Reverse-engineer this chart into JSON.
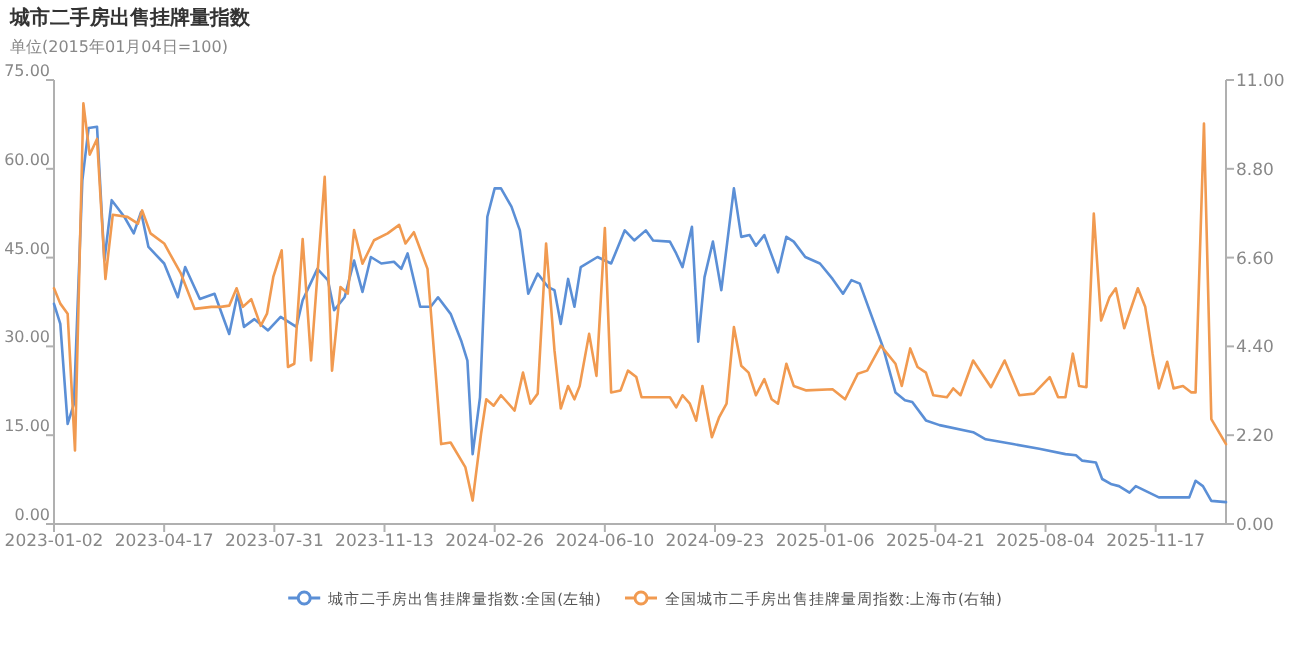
{
  "chart_data": {
    "type": "line",
    "title": "城市二手房出售挂牌量指数",
    "subtitle": "单位(2015年01月04日=100)",
    "xlim": [
      "2023-01-02",
      "2026-01-23"
    ],
    "xticks": [
      "2023-01-02",
      "2023-04-17",
      "2023-07-31",
      "2023-11-13",
      "2024-02-26",
      "2024-06-10",
      "2024-09-23",
      "2025-01-06",
      "2025-04-21",
      "2025-08-04",
      "2025-11-17"
    ],
    "ylim": [
      0,
      75
    ],
    "yticks": [
      {
        "value": 0,
        "label": "0.00"
      },
      {
        "value": 15,
        "label": "15.00"
      },
      {
        "value": 30,
        "label": "30.00"
      },
      {
        "value": 45,
        "label": "45.00"
      },
      {
        "value": 60,
        "label": "60.00"
      },
      {
        "value": 75,
        "label": "75.00"
      }
    ],
    "y2lim": [
      0,
      11
    ],
    "y2ticks": [
      {
        "value": 0,
        "label": "0.00"
      },
      {
        "value": 2.2,
        "label": "2.20"
      },
      {
        "value": 4.4,
        "label": "4.40"
      },
      {
        "value": 6.6,
        "label": "6.60"
      },
      {
        "value": 8.8,
        "label": "8.80"
      },
      {
        "value": 11,
        "label": "11.00"
      }
    ],
    "legend": "bottom",
    "grid": false,
    "series": [
      {
        "name": "城市二手房出售挂牌量指数:全国(左轴)",
        "color": "#5b8fd6",
        "x": [
          "2023-01-02",
          "2023-01-08",
          "2023-01-15",
          "2023-01-21",
          "2023-01-29",
          "2023-02-04",
          "2023-02-12",
          "2023-02-19",
          "2023-02-26",
          "2023-03-10",
          "2023-03-19",
          "2023-03-26",
          "2023-04-02",
          "2023-04-17",
          "2023-04-30",
          "2023-05-07",
          "2023-05-21",
          "2023-06-04",
          "2023-06-18",
          "2023-06-26",
          "2023-07-02",
          "2023-07-12",
          "2023-07-25",
          "2023-08-06",
          "2023-08-21",
          "2023-08-27",
          "2023-09-10",
          "2023-09-20",
          "2023-09-26",
          "2023-10-06",
          "2023-10-15",
          "2023-10-23",
          "2023-10-31",
          "2023-11-10",
          "2023-11-22",
          "2023-11-29",
          "2023-12-05",
          "2023-12-17",
          "2023-12-27",
          "2024-01-03",
          "2024-01-15",
          "2024-01-25",
          "2024-01-31",
          "2024-02-05",
          "2024-02-12",
          "2024-02-19",
          "2024-02-26",
          "2024-03-03",
          "2024-03-13",
          "2024-03-21",
          "2024-03-29",
          "2024-04-07",
          "2024-04-17",
          "2024-04-23",
          "2024-04-29",
          "2024-05-06",
          "2024-05-12",
          "2024-05-18",
          "2024-06-03",
          "2024-06-16",
          "2024-06-29",
          "2024-07-08",
          "2024-07-19",
          "2024-07-26",
          "2024-08-11",
          "2024-08-17",
          "2024-08-23",
          "2024-09-01",
          "2024-09-07",
          "2024-09-13",
          "2024-09-21",
          "2024-09-29",
          "2024-10-11",
          "2024-10-18",
          "2024-10-26",
          "2024-11-01",
          "2024-11-09",
          "2024-11-22",
          "2024-11-30",
          "2024-12-07",
          "2024-12-18",
          "2025-01-01",
          "2025-01-13",
          "2025-01-23",
          "2025-01-31",
          "2025-02-08",
          "2025-03-02",
          "2025-03-14",
          "2025-03-23",
          "2025-03-30",
          "2025-04-12",
          "2025-04-25",
          "2025-05-27",
          "2025-06-08",
          "2025-07-04",
          "2025-07-29",
          "2025-08-23",
          "2025-09-02",
          "2025-09-08",
          "2025-09-21",
          "2025-09-27",
          "2025-10-06",
          "2025-10-13",
          "2025-10-23",
          "2025-10-29",
          "2025-11-20",
          "2025-12-19",
          "2025-12-25",
          "2026-01-01",
          "2026-01-09",
          "2026-01-23"
        ],
        "values": [
          37.2,
          33.8,
          16.9,
          20.3,
          58.0,
          66.9,
          67.1,
          44.5,
          54.7,
          51.9,
          49.1,
          52.7,
          46.8,
          44.0,
          38.3,
          43.4,
          38.0,
          38.9,
          32.1,
          38.9,
          33.3,
          34.6,
          32.7,
          35.0,
          33.3,
          37.8,
          43.1,
          41.2,
          36.1,
          38.3,
          44.5,
          39.2,
          45.1,
          44.0,
          44.3,
          43.1,
          45.7,
          36.7,
          36.7,
          38.3,
          35.5,
          31.0,
          27.6,
          11.8,
          21.4,
          51.9,
          56.7,
          56.7,
          53.6,
          49.6,
          38.9,
          42.3,
          40.0,
          39.5,
          33.8,
          41.4,
          36.7,
          43.4,
          45.1,
          44.0,
          49.6,
          47.9,
          49.6,
          47.9,
          47.7,
          45.7,
          43.4,
          50.2,
          30.8,
          41.7,
          47.7,
          39.5,
          56.7,
          48.5,
          48.8,
          47.0,
          48.8,
          42.5,
          48.5,
          47.7,
          45.1,
          44.0,
          41.4,
          38.9,
          41.2,
          40.6,
          29.9,
          22.2,
          20.9,
          20.6,
          17.5,
          16.7,
          15.5,
          14.3,
          13.5,
          12.7,
          11.8,
          11.6,
          10.7,
          10.4,
          7.6,
          6.7,
          6.4,
          5.3,
          6.4,
          4.5,
          4.5,
          7.3,
          6.4,
          3.9,
          3.7
        ]
      },
      {
        "name": "全国城市二手房出售挂牌量周指数:上海市(右轴)",
        "color": "#f19a50",
        "axis": "y2",
        "x": [
          "2023-01-02",
          "2023-01-08",
          "2023-01-15",
          "2023-01-22",
          "2023-01-30",
          "2023-02-05",
          "2023-02-12",
          "2023-02-20",
          "2023-02-27",
          "2023-03-13",
          "2023-03-23",
          "2023-03-27",
          "2023-04-04",
          "2023-04-17",
          "2023-05-03",
          "2023-05-16",
          "2023-06-01",
          "2023-06-10",
          "2023-06-18",
          "2023-06-25",
          "2023-07-01",
          "2023-07-09",
          "2023-07-18",
          "2023-07-24",
          "2023-07-30",
          "2023-08-07",
          "2023-08-13",
          "2023-08-19",
          "2023-08-27",
          "2023-09-04",
          "2023-09-17",
          "2023-09-24",
          "2023-10-02",
          "2023-10-09",
          "2023-10-15",
          "2023-10-23",
          "2023-11-03",
          "2023-11-16",
          "2023-11-27",
          "2023-12-03",
          "2023-12-11",
          "2023-12-24",
          "2024-01-06",
          "2024-01-15",
          "2024-01-29",
          "2024-02-05",
          "2024-02-13",
          "2024-02-18",
          "2024-02-25",
          "2024-03-03",
          "2024-03-16",
          "2024-03-24",
          "2024-03-31",
          "2024-04-07",
          "2024-04-15",
          "2024-04-23",
          "2024-04-29",
          "2024-05-06",
          "2024-05-12",
          "2024-05-17",
          "2024-05-26",
          "2024-06-02",
          "2024-06-10",
          "2024-06-16",
          "2024-06-25",
          "2024-07-02",
          "2024-07-10",
          "2024-07-15",
          "2024-07-31",
          "2024-08-11",
          "2024-08-17",
          "2024-08-23",
          "2024-08-30",
          "2024-09-05",
          "2024-09-11",
          "2024-09-20",
          "2024-09-27",
          "2024-10-04",
          "2024-10-11",
          "2024-10-18",
          "2024-10-25",
          "2024-11-01",
          "2024-11-09",
          "2024-11-16",
          "2024-11-22",
          "2024-11-30",
          "2024-12-07",
          "2024-12-19",
          "2025-01-13",
          "2025-01-25",
          "2025-02-06",
          "2025-02-15",
          "2025-02-28",
          "2025-03-14",
          "2025-03-20",
          "2025-03-28",
          "2025-04-04",
          "2025-04-12",
          "2025-04-19",
          "2025-05-02",
          "2025-05-08",
          "2025-05-15",
          "2025-05-27",
          "2025-06-13",
          "2025-06-26",
          "2025-07-10",
          "2025-07-24",
          "2025-08-08",
          "2025-08-16",
          "2025-08-23",
          "2025-08-30",
          "2025-09-05",
          "2025-09-12",
          "2025-09-19",
          "2025-09-26",
          "2025-10-04",
          "2025-10-10",
          "2025-10-18",
          "2025-10-31",
          "2025-11-07",
          "2025-11-14",
          "2025-11-20",
          "2025-11-28",
          "2025-12-04",
          "2025-12-13",
          "2025-12-21",
          "2025-12-25",
          "2026-01-02",
          "2026-01-09",
          "2026-01-23"
        ],
        "values": [
          5.84,
          5.46,
          5.21,
          1.82,
          10.42,
          9.15,
          9.54,
          6.07,
          7.66,
          7.61,
          7.44,
          7.77,
          7.2,
          6.95,
          6.2,
          5.33,
          5.38,
          5.38,
          5.41,
          5.84,
          5.38,
          5.57,
          4.91,
          5.21,
          6.12,
          6.78,
          3.89,
          3.97,
          7.06,
          4.05,
          8.6,
          3.8,
          5.87,
          5.71,
          7.28,
          6.45,
          7.03,
          7.2,
          7.41,
          6.95,
          7.23,
          6.32,
          1.98,
          2.02,
          1.41,
          0.58,
          2.23,
          3.09,
          2.93,
          3.19,
          2.81,
          3.75,
          2.98,
          3.23,
          6.95,
          4.3,
          2.86,
          3.42,
          3.09,
          3.42,
          4.71,
          3.67,
          7.33,
          3.26,
          3.31,
          3.8,
          3.64,
          3.14,
          3.14,
          3.14,
          2.89,
          3.19,
          2.98,
          2.56,
          3.42,
          2.15,
          2.65,
          2.98,
          4.88,
          3.92,
          3.75,
          3.19,
          3.59,
          3.09,
          2.98,
          3.97,
          3.42,
          3.31,
          3.34,
          3.09,
          3.72,
          3.8,
          4.42,
          3.97,
          3.42,
          4.35,
          3.89,
          3.75,
          3.19,
          3.14,
          3.36,
          3.19,
          4.05,
          3.39,
          4.05,
          3.19,
          3.23,
          3.64,
          3.14,
          3.14,
          4.22,
          3.42,
          3.39,
          7.69,
          5.04,
          5.62,
          5.84,
          4.85,
          5.84,
          5.38,
          4.22,
          3.36,
          4.02,
          3.36,
          3.42,
          3.26,
          3.26,
          9.92,
          2.6,
          1.98
        ]
      }
    ]
  }
}
